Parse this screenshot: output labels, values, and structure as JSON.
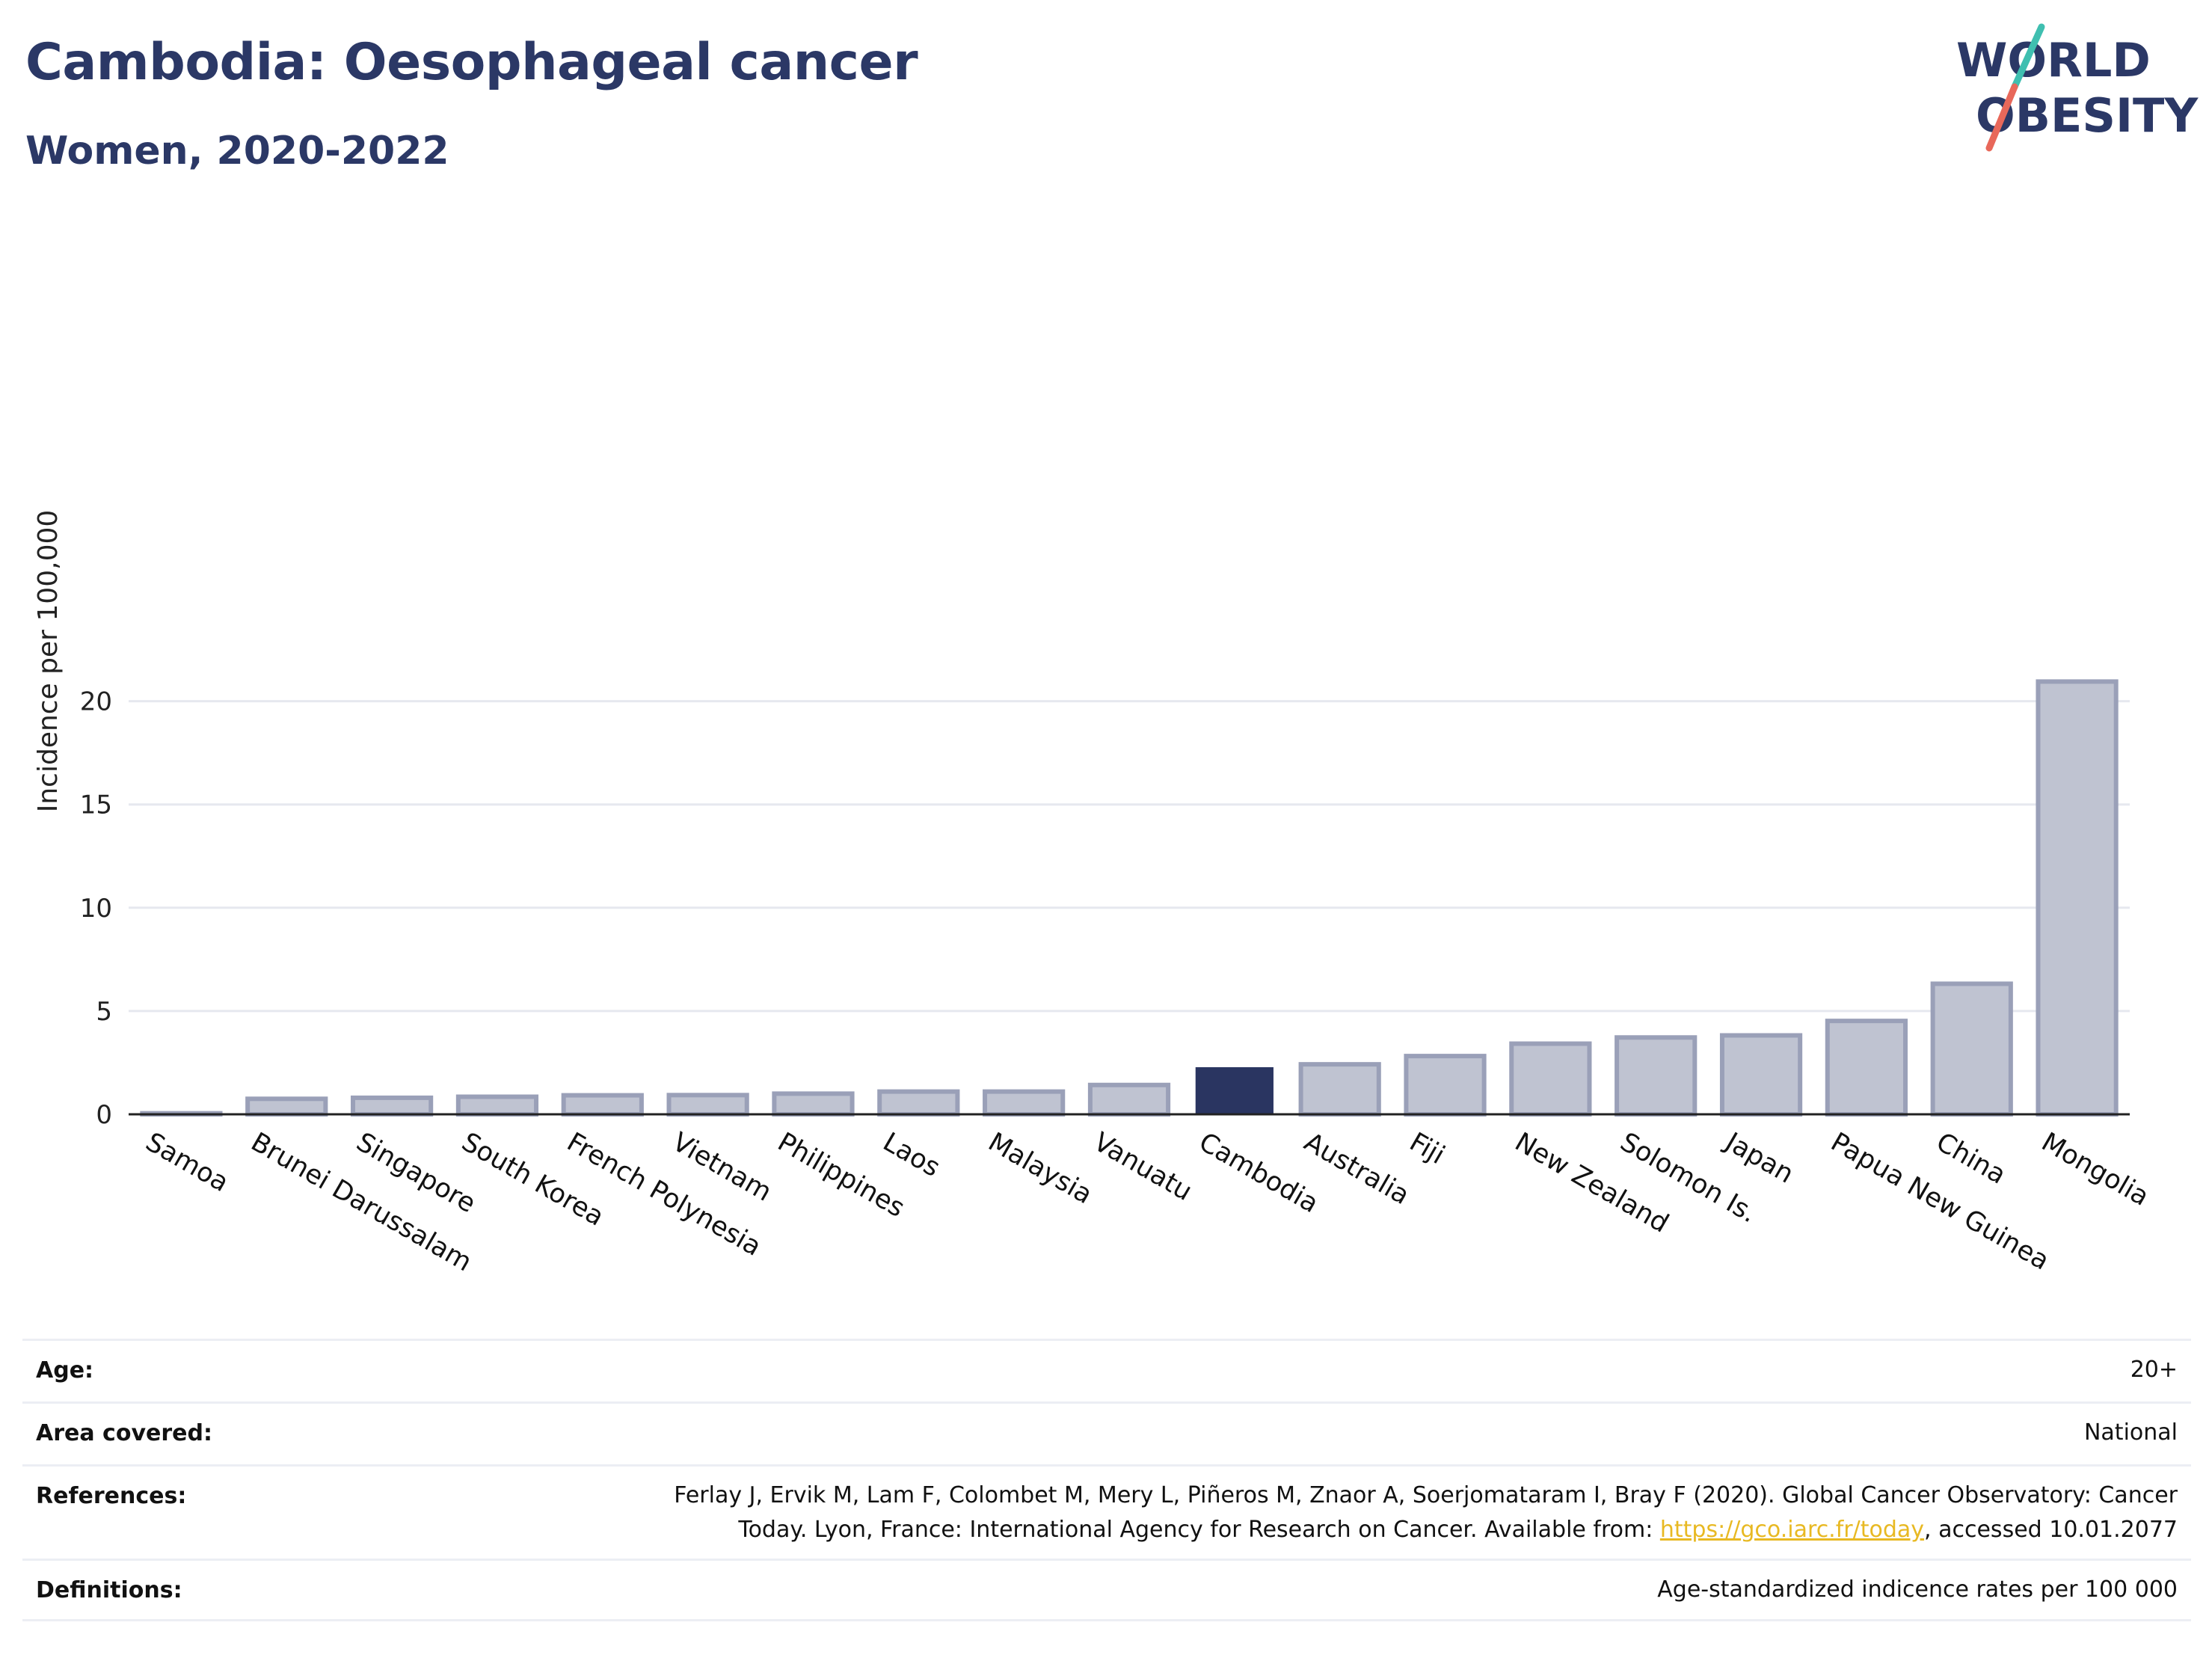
{
  "header": {
    "title": "Cambodia: Oesophageal cancer",
    "subtitle": "Women, 2020-2022"
  },
  "logo": {
    "line1": "WORLD",
    "line2": "OBESITY",
    "colors": {
      "text": "#2b3866",
      "slash_top": "#3fbfb0",
      "slash_bottom": "#e8685a"
    }
  },
  "colors": {
    "highlight_bar": "#2a3561",
    "other_bar_fill": "#bfc3d1",
    "other_bar_stroke": "#9aa0b8",
    "grid": "#e6e8ef",
    "axis": "#222222"
  },
  "chart_data": {
    "type": "bar",
    "categories": [
      "Samoa",
      "Brunei Darussalam",
      "Singapore",
      "South Korea",
      "French Polynesia",
      "Vietnam",
      "Philippines",
      "Laos",
      "Malaysia",
      "Vanuatu",
      "Cambodia",
      "Australia",
      "Fiji",
      "New Zealand",
      "Solomon Is.",
      "Japan",
      "Papua New Guinea",
      "China",
      "Mongolia"
    ],
    "values": [
      0.05,
      0.75,
      0.8,
      0.85,
      0.92,
      0.93,
      1.0,
      1.1,
      1.1,
      1.42,
      2.28,
      2.42,
      2.82,
      3.42,
      3.72,
      3.82,
      4.52,
      6.32,
      20.95
    ],
    "highlight": "Cambodia",
    "ylabel": "Incidence per 100,000",
    "xlabel": "",
    "ylim": [
      0,
      21.5
    ],
    "yticks": [
      0,
      5,
      10,
      15,
      20
    ],
    "grid": true
  },
  "info": {
    "rows": [
      {
        "label": "Age:",
        "value": "20+"
      },
      {
        "label": "Area covered:",
        "value": "National"
      },
      {
        "label": "References:",
        "value_line1": "Ferlay J, Ervik M, Lam F, Colombet M, Mery L, Piñeros M, Znaor A, Soerjomataram I, Bray F (2020). Global Cancer Observatory: Cancer",
        "value_line2_pre": "Today. Lyon, France: International Agency for Research on Cancer. Available from: ",
        "link": "https://gco.iarc.fr/today",
        "value_line2_post": ", accessed 10.01.2077"
      },
      {
        "label": "Definitions:",
        "value": "Age-standardized indicence rates per 100 000"
      }
    ]
  }
}
